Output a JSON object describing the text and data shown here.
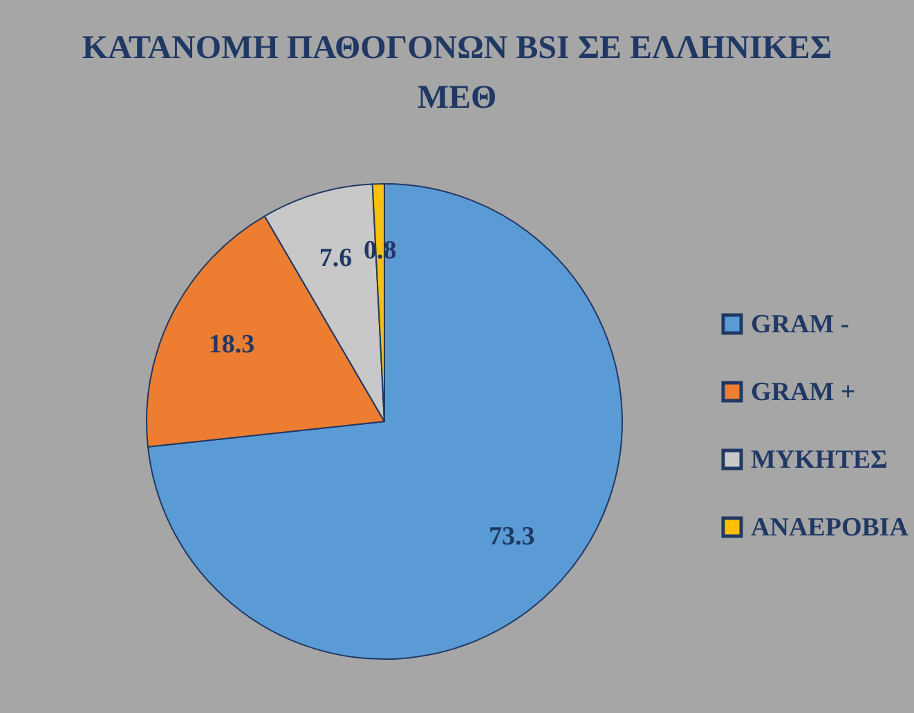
{
  "chart_data": {
    "type": "pie",
    "title": "ΚΑΤΑΝΟΜΗ ΠΑΘΟΓΟΝΩΝ BSI ΣΕ ΕΛΛΗΝΙΚΕΣ ΜΕΘ",
    "categories": [
      "GRAM -",
      "GRAM +",
      "ΜΥΚΗΤΕΣ",
      "ΑΝΑΕΡΟΒΙΑ"
    ],
    "values": [
      73.3,
      18.3,
      7.6,
      0.8
    ],
    "colors": [
      "#5b9bd5",
      "#ed7d31",
      "#c8c8c8",
      "#ffc000"
    ],
    "data_labels": true,
    "legend": "right"
  }
}
